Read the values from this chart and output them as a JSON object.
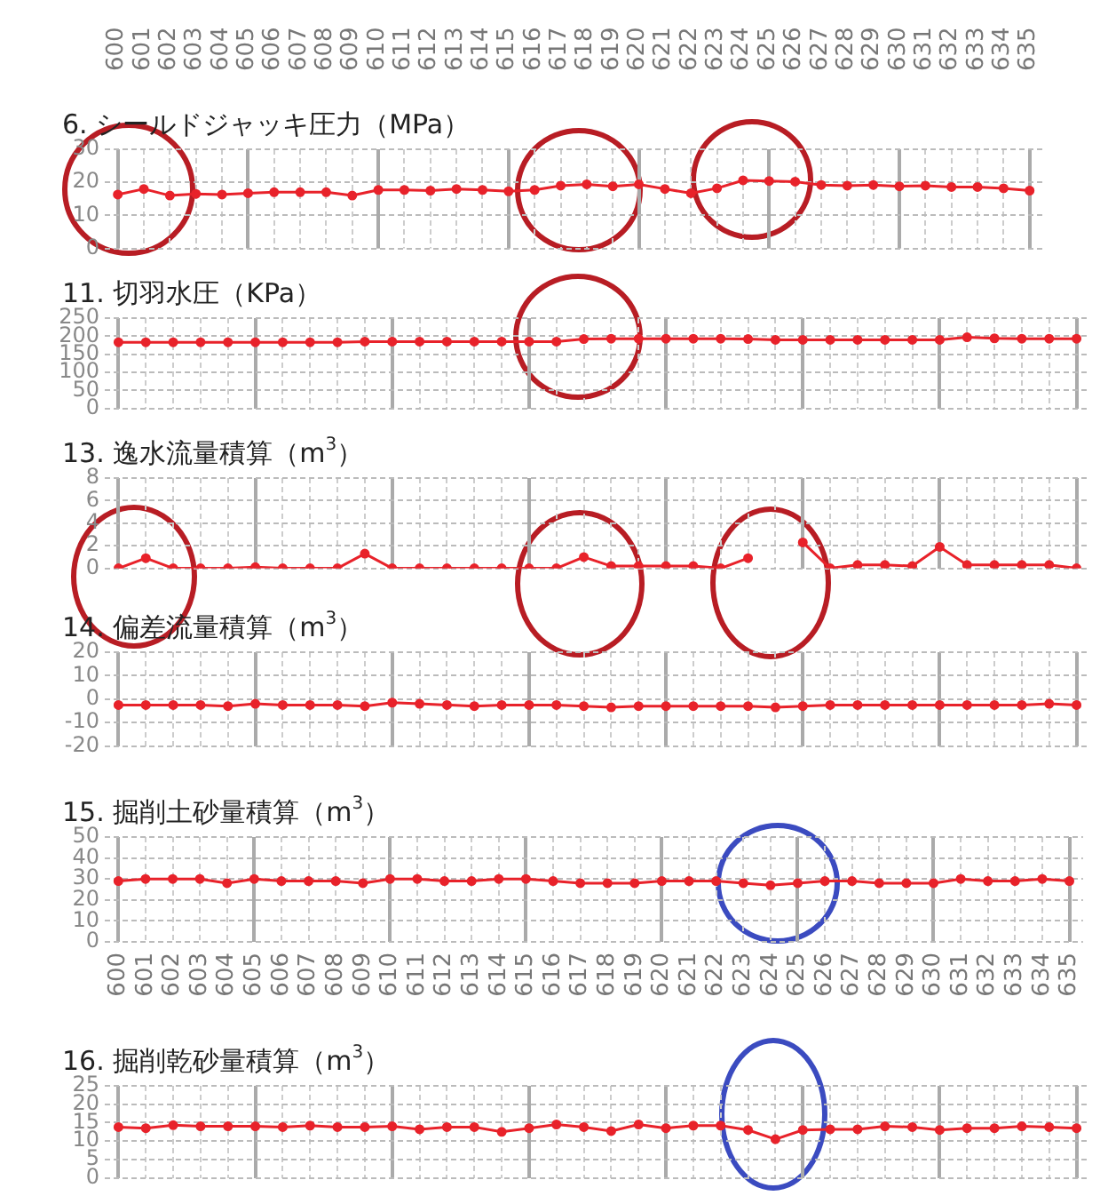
{
  "chart_data": [
    {
      "type": "line",
      "title": "6. シールドジャッキ圧力（MPa）",
      "categories": [
        "600",
        "601",
        "602",
        "603",
        "604",
        "605",
        "606",
        "607",
        "608",
        "609",
        "610",
        "611",
        "612",
        "613",
        "614",
        "615",
        "616",
        "617",
        "618",
        "619",
        "620",
        "621",
        "622",
        "623",
        "624",
        "625",
        "626",
        "627",
        "628",
        "629",
        "630",
        "631",
        "632",
        "633",
        "634",
        "635"
      ],
      "series": [
        {
          "color": "#e8222a",
          "values": [
            16.3,
            18,
            16,
            16.5,
            16.3,
            16.7,
            17,
            17,
            17,
            16,
            17.7,
            17.7,
            17.5,
            18,
            17.7,
            17.3,
            17.7,
            19,
            19.4,
            18.8,
            19.4,
            18,
            16.7,
            18.2,
            20.6,
            20.4,
            20.2,
            19.2,
            19,
            19.2,
            18.8,
            19,
            18.6,
            18.6,
            18.2,
            17.5
          ]
        }
      ],
      "ylim": [
        0,
        30
      ],
      "yticks": [
        0,
        10,
        20,
        30
      ],
      "grid": true,
      "marker": "circle"
    },
    {
      "type": "line",
      "title": "11. 切羽水圧（KPa）",
      "categories": [
        "600",
        "601",
        "602",
        "603",
        "604",
        "605",
        "606",
        "607",
        "608",
        "609",
        "610",
        "611",
        "612",
        "613",
        "614",
        "615",
        "616",
        "617",
        "618",
        "619",
        "620",
        "621",
        "622",
        "623",
        "624",
        "625",
        "626",
        "627",
        "628",
        "629",
        "630",
        "631",
        "632",
        "633",
        "634",
        "635"
      ],
      "series": [
        {
          "color": "#e8222a",
          "values": [
            183,
            183,
            183,
            183,
            183,
            183,
            183,
            183,
            183,
            185,
            185,
            185,
            185,
            185,
            185,
            185,
            185,
            192,
            193,
            193,
            193,
            193,
            193,
            192,
            190,
            190,
            190,
            190,
            190,
            190,
            190,
            197,
            194,
            193,
            193,
            193
          ]
        }
      ],
      "ylim": [
        0,
        250
      ],
      "yticks": [
        0,
        50,
        100,
        150,
        200,
        250
      ],
      "grid": true,
      "marker": "circle",
      "tick_labels": "y"
    },
    {
      "type": "line",
      "title": "13. 逸水流量積算（m$^{3}$）",
      "categories": [
        "600",
        "601",
        "602",
        "603",
        "604",
        "605",
        "606",
        "607",
        "608",
        "609",
        "610",
        "611",
        "612",
        "613",
        "614",
        "615",
        "616",
        "617",
        "618",
        "619",
        "620",
        "621",
        "622",
        "623",
        "624",
        "625",
        "626",
        "627",
        "628",
        "629",
        "630",
        "631",
        "632",
        "633",
        "634",
        "635"
      ],
      "series": [
        {
          "color": "#e8222a",
          "values": [
            0,
            0.9,
            0,
            0,
            0,
            0.1,
            0,
            0,
            0,
            1.3,
            0,
            0,
            0,
            0,
            0,
            0,
            0,
            1,
            0.2,
            0.2,
            0.2,
            0.2,
            0,
            0.9,
            null,
            2.3,
            0,
            0.3,
            0.3,
            0.2,
            1.9,
            0.3,
            0.3,
            0.3,
            0.3,
            0
          ]
        }
      ],
      "ylim": [
        0,
        8
      ],
      "yticks": [
        0,
        2,
        4,
        6,
        8
      ],
      "grid": true,
      "marker": "circle",
      "tick_labels": "y"
    },
    {
      "type": "line",
      "title": "14. 偏差流量積算（m$^{3}$）",
      "categories": [
        "600",
        "601",
        "602",
        "603",
        "604",
        "605",
        "606",
        "607",
        "608",
        "609",
        "610",
        "611",
        "612",
        "613",
        "614",
        "615",
        "616",
        "617",
        "618",
        "619",
        "620",
        "621",
        "622",
        "623",
        "624",
        "625",
        "626",
        "627",
        "628",
        "629",
        "630",
        "631",
        "632",
        "633",
        "634",
        "635"
      ],
      "series": [
        {
          "color": "#e8222a",
          "values": [
            -2.5,
            -2.5,
            -2.5,
            -2.5,
            -3,
            -2,
            -2.5,
            -2.5,
            -2.5,
            -3,
            -1.5,
            -2,
            -2.5,
            -3,
            -2.5,
            -2.5,
            -2.5,
            -3,
            -3.5,
            -3,
            -3,
            -3,
            -3,
            -3,
            -3.5,
            -3,
            -2.5,
            -2.5,
            -2.5,
            -2.5,
            -2.5,
            -2.5,
            -2.5,
            -2.5,
            -2,
            -2.5
          ]
        }
      ],
      "ylim": [
        -20,
        20
      ],
      "yticks": [
        -20,
        -10,
        0,
        10,
        20
      ],
      "grid": true,
      "marker": "circle",
      "tick_labels": "y"
    },
    {
      "type": "line",
      "title": "15. 掘削土砂量積算（m$^{3}$）",
      "categories": [
        "600",
        "601",
        "602",
        "603",
        "604",
        "605",
        "606",
        "607",
        "608",
        "609",
        "610",
        "611",
        "612",
        "613",
        "614",
        "615",
        "616",
        "617",
        "618",
        "619",
        "620",
        "621",
        "622",
        "623",
        "624",
        "625",
        "626",
        "627",
        "628",
        "629",
        "630",
        "631",
        "632",
        "633",
        "634",
        "635"
      ],
      "series": [
        {
          "color": "#e8222a",
          "values": [
            29,
            30,
            30,
            30,
            28,
            30,
            29,
            29,
            29,
            28,
            30,
            30,
            29,
            29,
            30,
            30,
            29,
            28,
            28,
            28,
            29,
            29,
            29,
            28,
            27,
            28,
            29,
            29,
            28,
            28,
            28,
            30,
            29,
            29,
            30,
            29
          ]
        }
      ],
      "ylim": [
        0,
        50
      ],
      "yticks": [
        0,
        10,
        20,
        30,
        40,
        50
      ],
      "grid": true,
      "marker": "circle"
    },
    {
      "type": "line",
      "title": "16. 掘削乾砂量積算（m$^{3}$）",
      "categories": [
        "600",
        "601",
        "602",
        "603",
        "604",
        "605",
        "606",
        "607",
        "608",
        "609",
        "610",
        "611",
        "612",
        "613",
        "614",
        "615",
        "616",
        "617",
        "618",
        "619",
        "620",
        "621",
        "622",
        "623",
        "624",
        "625",
        "626",
        "627",
        "628",
        "629",
        "630",
        "631",
        "632",
        "633",
        "634",
        "635"
      ],
      "series": [
        {
          "color": "#e8222a",
          "values": [
            13.8,
            13.5,
            14.3,
            14,
            14,
            14,
            13.8,
            14.2,
            13.8,
            13.8,
            14,
            13.2,
            13.8,
            13.8,
            12.5,
            13.5,
            14.5,
            13.8,
            12.7,
            14.5,
            13.5,
            14.2,
            14.2,
            13,
            10.5,
            13,
            13.2,
            13.2,
            14,
            13.8,
            13,
            13.5,
            13.5,
            14,
            13.8,
            13.5
          ]
        }
      ],
      "ylim": [
        0,
        25
      ],
      "yticks": [
        0,
        5,
        10,
        15,
        20,
        25
      ],
      "grid": true,
      "marker": "circle",
      "tick_labels": "y"
    }
  ]
}
